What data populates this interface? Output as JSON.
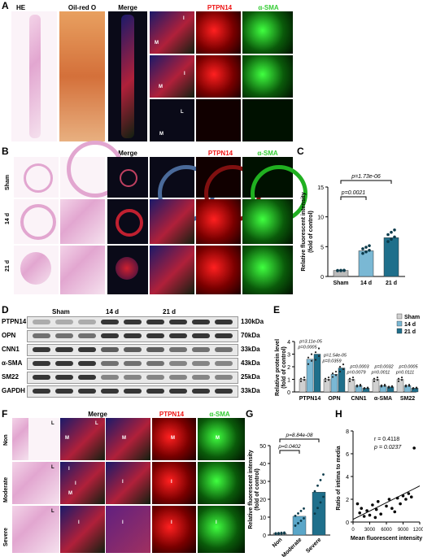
{
  "panels": {
    "a": "A",
    "b": "B",
    "c": "C",
    "d": "D",
    "e": "E",
    "f": "F",
    "g": "G",
    "h": "H"
  },
  "a": {
    "he": "HE",
    "oil": "Oil-red O",
    "merge": "Merge",
    "ptpn14": "PTPN14",
    "asma": "α-SMA",
    "inset_labels": [
      "M",
      "I",
      "M",
      "I",
      "L",
      "M"
    ]
  },
  "b": {
    "merge": "Merge",
    "ptpn14": "PTPN14",
    "asma": "α-SMA",
    "rows": [
      "Sham",
      "14 d",
      "21 d"
    ]
  },
  "c": {
    "ylabel": "Relative fluorescent intensity\n(fold of control)",
    "yl1": "Relative fluorescent intensity",
    "yl2": "(fold of control)",
    "categories": [
      "Sham",
      "14 d",
      "21 d"
    ],
    "p1": "p=0.0021",
    "p2": "p=1.73e-06"
  },
  "d": {
    "groups": [
      "Sham",
      "14 d",
      "21 d"
    ],
    "proteins": [
      "PTPN14",
      "OPN",
      "CNN1",
      "α-SMA",
      "SM22",
      "GAPDH"
    ],
    "kda": [
      "130kDa",
      "70kDa",
      "33kDa",
      "43kDa",
      "25kDa",
      "33kDa"
    ]
  },
  "e": {
    "ylabel1": "Relative protein level",
    "ylabel2": "(fold of control)",
    "legend": [
      "Sham",
      "14 d",
      "21 d"
    ],
    "categories": [
      "PTPN14",
      "OPN",
      "CNN1",
      "α-SMA",
      "SM22"
    ],
    "pvals": [
      "p=3.11e-05",
      "p=0.0005",
      "p=1.54e-05",
      "p=0.0359",
      "p=0.0003",
      "p=0.0079",
      "p=0.0032",
      "p=0.0011",
      "p=0.0005",
      "p=0.0111"
    ]
  },
  "f": {
    "merge": "Merge",
    "ptpn14": "PTPN14",
    "asma": "α-SMA",
    "rows": [
      "Non",
      "Moderate",
      "Severe"
    ],
    "labels": [
      "L",
      "M",
      "L",
      "M",
      "M",
      "M",
      "L",
      "I",
      "I",
      "M",
      "I",
      "I",
      "L",
      "I",
      "I",
      "I",
      "I"
    ]
  },
  "g": {
    "yl1": "Relative fluorescent intensity",
    "yl2": "(fold of control)",
    "categories": [
      "Non",
      "Moderate",
      "Severe"
    ],
    "p1": "p=0.0402",
    "p2": "p=8.84e-08"
  },
  "h": {
    "r": "r = 0.4118",
    "p": "p = 0.0237",
    "xlabel": "Mean fluorescent intensity",
    "ylabel": "Ratio of intima to media"
  },
  "chart_data": [
    {
      "type": "bar",
      "panel": "C",
      "categories": [
        "Sham",
        "14 d",
        "21 d"
      ],
      "values": [
        1.0,
        4.3,
        6.5
      ],
      "ylim": [
        0,
        15
      ],
      "yticks": [
        0,
        5,
        10,
        15
      ],
      "ylabel": "Relative fluorescent intensity (fold of control)",
      "colors": [
        "#bbbbbb",
        "#7ab8d4",
        "#1f6f8b"
      ]
    },
    {
      "type": "bar",
      "panel": "E",
      "categories": [
        "PTPN14",
        "OPN",
        "CNN1",
        "α-SMA",
        "SM22"
      ],
      "ylim": [
        0,
        4
      ],
      "yticks": [
        0,
        1,
        2,
        3,
        4
      ],
      "ylabel": "Relative protein level (fold of control)",
      "series": [
        {
          "name": "Sham",
          "values": [
            1.0,
            1.0,
            1.0,
            1.0,
            1.0
          ]
        },
        {
          "name": "14 d",
          "values": [
            2.6,
            1.4,
            0.5,
            0.5,
            0.5
          ]
        },
        {
          "name": "21 d",
          "values": [
            3.0,
            1.9,
            0.3,
            0.4,
            0.3
          ]
        }
      ]
    },
    {
      "type": "bar",
      "panel": "G",
      "categories": [
        "Non",
        "Moderate",
        "Severe"
      ],
      "values": [
        1.0,
        10.5,
        24.0
      ],
      "ylim": [
        0,
        50
      ],
      "yticks": [
        0,
        10,
        20,
        30,
        40,
        50
      ],
      "ylabel": "Relative fluorescent intensity (fold of control)"
    },
    {
      "type": "scatter",
      "panel": "H",
      "xlim": [
        0,
        12000
      ],
      "ylim": [
        0,
        8
      ],
      "xticks": [
        0,
        3000,
        6000,
        9000,
        12000
      ],
      "yticks": [
        0,
        2,
        4,
        6,
        8
      ],
      "xlabel": "Mean fluorescent intensity",
      "ylabel": "Ratio of intima to media",
      "points": [
        [
          800,
          1.6
        ],
        [
          1200,
          0.8
        ],
        [
          1500,
          1.2
        ],
        [
          2000,
          0.5
        ],
        [
          2500,
          1.0
        ],
        [
          3000,
          0.6
        ],
        [
          3500,
          1.5
        ],
        [
          4000,
          0.4
        ],
        [
          4200,
          1.1
        ],
        [
          4500,
          1.8
        ],
        [
          5000,
          0.7
        ],
        [
          6000,
          1.4
        ],
        [
          6500,
          2.0
        ],
        [
          7000,
          1.2
        ],
        [
          7500,
          0.9
        ],
        [
          8000,
          2.1
        ],
        [
          8500,
          1.6
        ],
        [
          9000,
          2.3
        ],
        [
          9500,
          2.0
        ],
        [
          10000,
          2.5
        ],
        [
          10500,
          2.2
        ],
        [
          11000,
          6.5
        ]
      ]
    }
  ]
}
